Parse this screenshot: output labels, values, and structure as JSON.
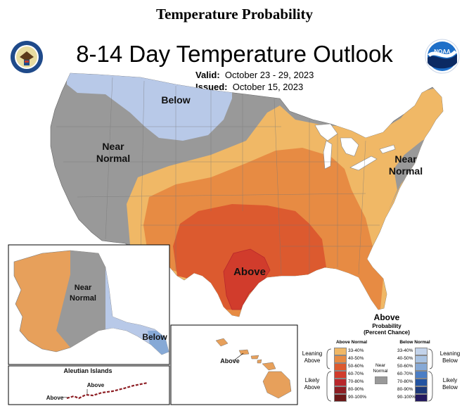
{
  "page_heading": "Temperature Probability",
  "map_title": "8-14 Day Temperature Outlook",
  "valid_label": "Valid:",
  "valid_value": "October 23 - 29, 2023",
  "issued_label": "Issued:",
  "issued_value": "October 15, 2023",
  "logos": {
    "left": "doc-seal-icon",
    "right": "noaa-logo-icon"
  },
  "region_labels": {
    "below_north": "Below",
    "near_normal_west": [
      "Near",
      "Normal"
    ],
    "near_normal_east": [
      "Near",
      "Normal"
    ],
    "above_texas": "Above",
    "near_normal_alaska": [
      "Near",
      "Normal"
    ],
    "below_alaska": "Below",
    "aleutian_title": "Aleutian Islands",
    "above_aleutian_1": "Above",
    "above_aleutian_2": "Above",
    "above_hawaii": "Above"
  },
  "legend": {
    "title": "Above",
    "subtitle": [
      "Probability",
      "(Percent Chance)"
    ],
    "above_header": "Above Normal",
    "below_header": "Below Normal",
    "near_normal": [
      "Near",
      "Normal"
    ],
    "leaning_above": [
      "Leaning",
      "Above"
    ],
    "likely_above": [
      "Likely",
      "Above"
    ],
    "leaning_below": [
      "Leaning",
      "Below"
    ],
    "likely_below": [
      "Likely",
      "Below"
    ],
    "above_levels": [
      "33-40%",
      "40-50%",
      "50-60%",
      "60-70%",
      "70-80%",
      "80-90%",
      "90-100%"
    ],
    "below_levels": [
      "33-40%",
      "40-50%",
      "50-60%",
      "60-70%",
      "70-80%",
      "80-90%",
      "90-100%"
    ],
    "above_colors": [
      "#f0b866",
      "#e78b43",
      "#dc5a2f",
      "#d13c2c",
      "#b8272c",
      "#8d1d23",
      "#6b1818"
    ],
    "below_colors": [
      "#c3d3ea",
      "#a8c2e2",
      "#86a9d6",
      "#4b7ec5",
      "#2354a2",
      "#1c3979",
      "#23195e"
    ],
    "near_color": "#999999"
  }
}
